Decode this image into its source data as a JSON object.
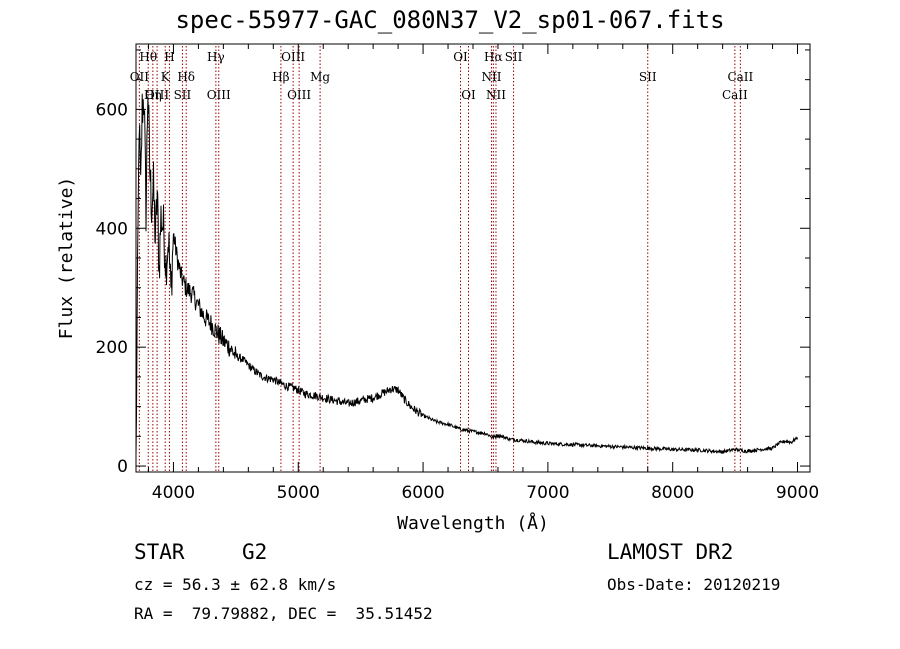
{
  "title": "spec-55977-GAC_080N37_V2_sp01-067.fits",
  "info": {
    "class": "STAR",
    "subclass": "G2",
    "survey": "LAMOST DR2",
    "cz": "cz = 56.3 ± 62.8 km/s",
    "obs_date": "Obs-Date: 20120219",
    "radec": "RA =  79.79882, DEC =  35.51452"
  },
  "chart_data": {
    "type": "line",
    "xlabel": "Wavelength (Å)",
    "ylabel": "Flux (relative)",
    "xlim": [
      3700,
      9100
    ],
    "ylim": [
      -10,
      710
    ],
    "xticks": [
      4000,
      5000,
      6000,
      7000,
      8000,
      9000
    ],
    "yticks": [
      0,
      200,
      400,
      600
    ],
    "series": [
      {
        "x": [
          3700,
          3712,
          3725,
          3738,
          3750,
          3765,
          3780,
          3795,
          3810,
          3825,
          3840,
          3855,
          3870,
          3885,
          3900,
          3920,
          3940,
          3960,
          3980,
          4000,
          4030,
          4060,
          4100,
          4150,
          4200,
          4250,
          4300,
          4350,
          4400,
          4450,
          4500,
          4550,
          4600,
          4650,
          4700,
          4750,
          4800,
          4850,
          4900,
          4950,
          5000,
          5050,
          5100,
          5150,
          5200,
          5300,
          5400,
          5500,
          5600,
          5700,
          5750,
          5800,
          5850,
          5900,
          5950,
          6000,
          6100,
          6200,
          6300,
          6400,
          6500,
          6562,
          6600,
          6700,
          6800,
          6900,
          7000,
          7200,
          7400,
          7600,
          7800,
          8000,
          8200,
          8400,
          8500,
          8600,
          8700,
          8800,
          8850,
          8900,
          8950,
          9000
        ],
        "y": [
          5,
          300,
          580,
          460,
          600,
          620,
          430,
          640,
          500,
          440,
          470,
          380,
          460,
          330,
          420,
          400,
          340,
          385,
          290,
          390,
          350,
          320,
          300,
          290,
          270,
          250,
          240,
          225,
          210,
          200,
          185,
          180,
          170,
          160,
          152,
          148,
          146,
          140,
          135,
          132,
          128,
          122,
          120,
          118,
          115,
          110,
          105,
          110,
          115,
          125,
          130,
          128,
          112,
          100,
          92,
          85,
          75,
          70,
          62,
          58,
          55,
          48,
          52,
          45,
          43,
          40,
          38,
          36,
          34,
          32,
          30,
          28,
          27,
          24,
          28,
          25,
          28,
          30,
          38,
          42,
          40,
          48
        ]
      }
    ],
    "lines": [
      {
        "name": "Hθ",
        "x": 3798
      },
      {
        "name": "OII",
        "x": 3727
      },
      {
        "name": "OIII",
        "x": 3869
      },
      {
        "name": "Hη",
        "x": 3835
      },
      {
        "name": "H",
        "x": 3968
      },
      {
        "name": "K",
        "x": 3934
      },
      {
        "name": "Hδ",
        "x": 4102
      },
      {
        "name": "SII",
        "x": 4072
      },
      {
        "name": "Hγ",
        "x": 4340
      },
      {
        "name": "OIII",
        "x": 4363
      },
      {
        "name": "OIII",
        "x": 4959
      },
      {
        "name": "Hβ",
        "x": 4861
      },
      {
        "name": "OIII",
        "x": 5007
      },
      {
        "name": "Mg",
        "x": 5175
      },
      {
        "name": "OI",
        "x": 6300
      },
      {
        "name": "OI",
        "x": 6364
      },
      {
        "name": "Hα",
        "x": 6563
      },
      {
        "name": "SII",
        "x": 6725
      },
      {
        "name": "NII",
        "x": 6548
      },
      {
        "name": "NII",
        "x": 6584
      },
      {
        "name": "SII",
        "x": 7800
      },
      {
        "name": "CaII",
        "x": 8542
      },
      {
        "name": "CaII",
        "x": 8498
      }
    ]
  }
}
